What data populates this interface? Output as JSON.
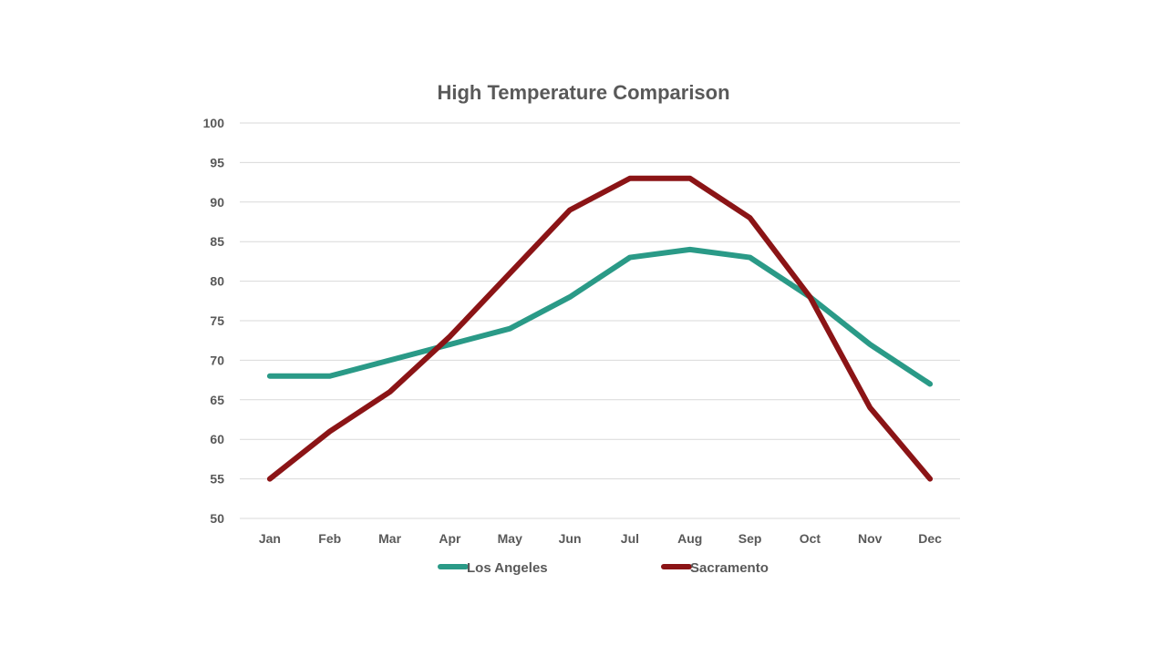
{
  "chart_data": {
    "type": "line",
    "title": "High Temperature Comparison",
    "xlabel": "",
    "ylabel": "",
    "categories": [
      "Jan",
      "Feb",
      "Mar",
      "Apr",
      "May",
      "Jun",
      "Jul",
      "Aug",
      "Sep",
      "Oct",
      "Nov",
      "Dec"
    ],
    "ylim": [
      50,
      100
    ],
    "yticks": [
      50,
      55,
      60,
      65,
      70,
      75,
      80,
      85,
      90,
      95,
      100
    ],
    "grid": true,
    "legend_position": "bottom",
    "series": [
      {
        "name": "Los Angeles",
        "color": "#2a9a87",
        "values": [
          68,
          68,
          70,
          72,
          74,
          78,
          83,
          84,
          83,
          78,
          72,
          67
        ]
      },
      {
        "name": "Sacramento",
        "color": "#8b1416",
        "values": [
          55,
          61,
          66,
          73,
          81,
          89,
          93,
          93,
          88,
          78,
          64,
          55
        ]
      }
    ]
  }
}
